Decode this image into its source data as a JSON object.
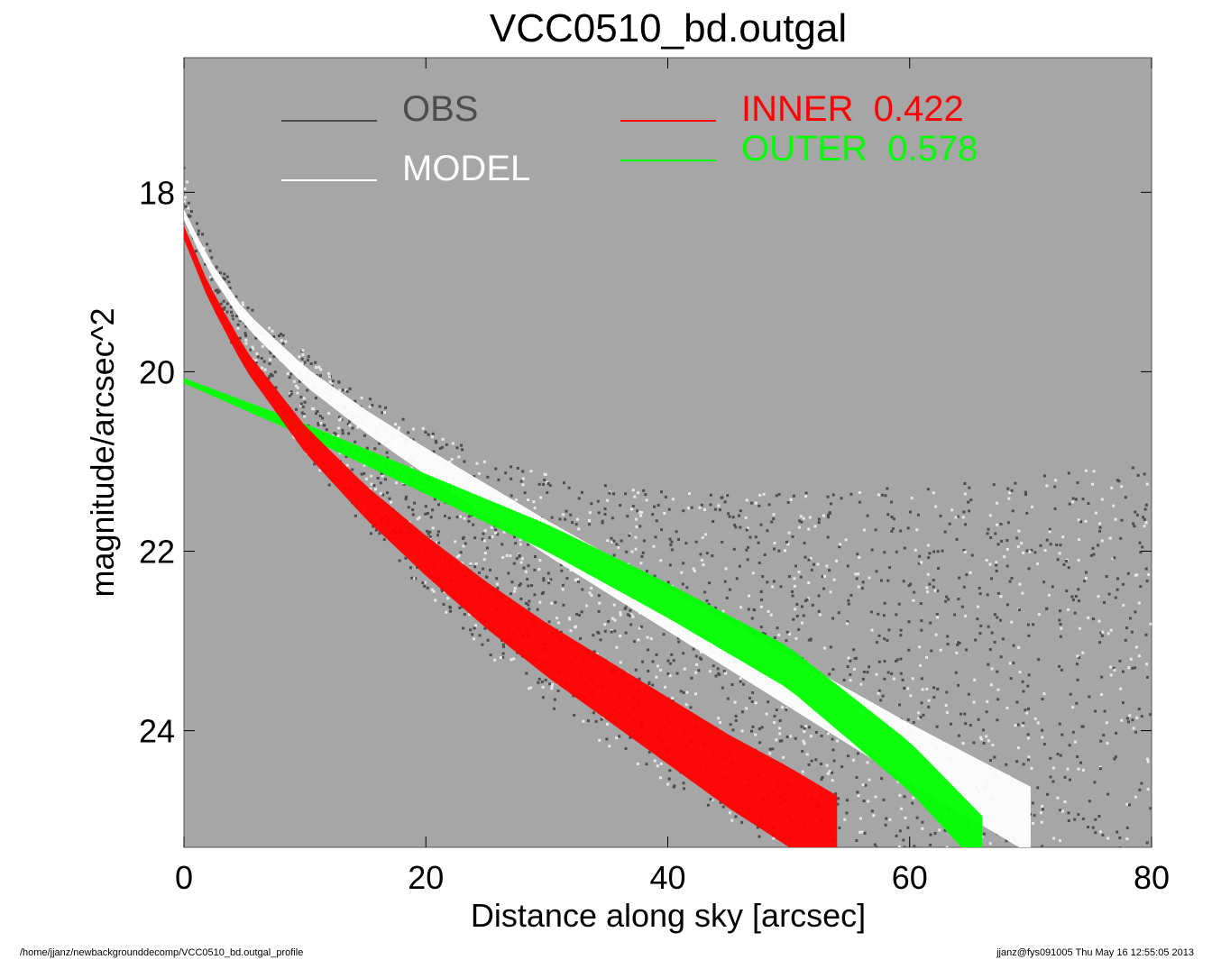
{
  "chart_data": {
    "type": "scatter",
    "title": "VCC0510_bd.outgal",
    "xlabel": "Distance along sky [arcsec]",
    "ylabel": "magnitude/arcsec^2",
    "xlim": [
      0,
      80
    ],
    "ylim": [
      25.3,
      16.5
    ],
    "y_inverted": true,
    "xticks": [
      0,
      20,
      40,
      60,
      80
    ],
    "yticks": [
      18,
      20,
      22,
      24
    ],
    "background_color": "#a6a6a6",
    "grid": false,
    "series": [
      {
        "name": "OBS",
        "color": "#4d4d4d",
        "marker": "square",
        "x": [
          0.5,
          1,
          2,
          3,
          4,
          5,
          6,
          8,
          10,
          12,
          14,
          16,
          18,
          20,
          22,
          24,
          26,
          28,
          30,
          32,
          35,
          38,
          40,
          45,
          50,
          55,
          60,
          65,
          70,
          75,
          80
        ],
        "y": [
          18.1,
          18.4,
          18.7,
          18.95,
          19.15,
          19.3,
          19.45,
          19.75,
          20.0,
          20.25,
          20.45,
          20.65,
          20.85,
          21.0,
          21.15,
          21.3,
          21.45,
          21.55,
          21.65,
          21.75,
          21.85,
          21.95,
          22.0,
          22.1,
          22.15,
          22.2,
          22.2,
          22.25,
          22.25,
          22.25,
          22.25
        ]
      },
      {
        "name": "MODEL",
        "color": "#ffffff",
        "x": [
          0,
          2,
          5,
          10,
          15,
          20,
          30,
          40,
          50,
          60,
          70
        ],
        "y": [
          18.25,
          18.8,
          19.4,
          20.05,
          20.55,
          21.0,
          21.85,
          22.65,
          23.45,
          24.25,
          25.0
        ]
      },
      {
        "name": "INNER",
        "label": "INNER  0.422",
        "value": 0.422,
        "color": "#ff0000",
        "x": [
          0,
          2,
          5,
          10,
          15,
          20,
          25,
          30,
          35,
          40,
          45,
          50,
          54
        ],
        "y": [
          18.45,
          19.1,
          19.85,
          20.75,
          21.45,
          22.05,
          22.6,
          23.1,
          23.55,
          24.0,
          24.45,
          24.85,
          25.2
        ]
      },
      {
        "name": "OUTER",
        "label": "OUTER  0.578",
        "value": 0.578,
        "color": "#00ff00",
        "x": [
          0,
          10,
          20,
          30,
          40,
          50,
          60,
          66
        ],
        "y": [
          20.1,
          20.65,
          21.25,
          21.85,
          22.55,
          23.3,
          24.4,
          25.25
        ]
      }
    ]
  },
  "legend": {
    "obs_label": "OBS",
    "model_label": "MODEL",
    "inner_label": "INNER  0.422",
    "outer_label": "OUTER  0.578"
  },
  "footer": {
    "path": "/home/jjanz/newbackgrounddecomp/VCC0510_bd.outgal_profile",
    "stamp": "jjanz@fys091005  Thu May 16 12:55:05 2013"
  }
}
